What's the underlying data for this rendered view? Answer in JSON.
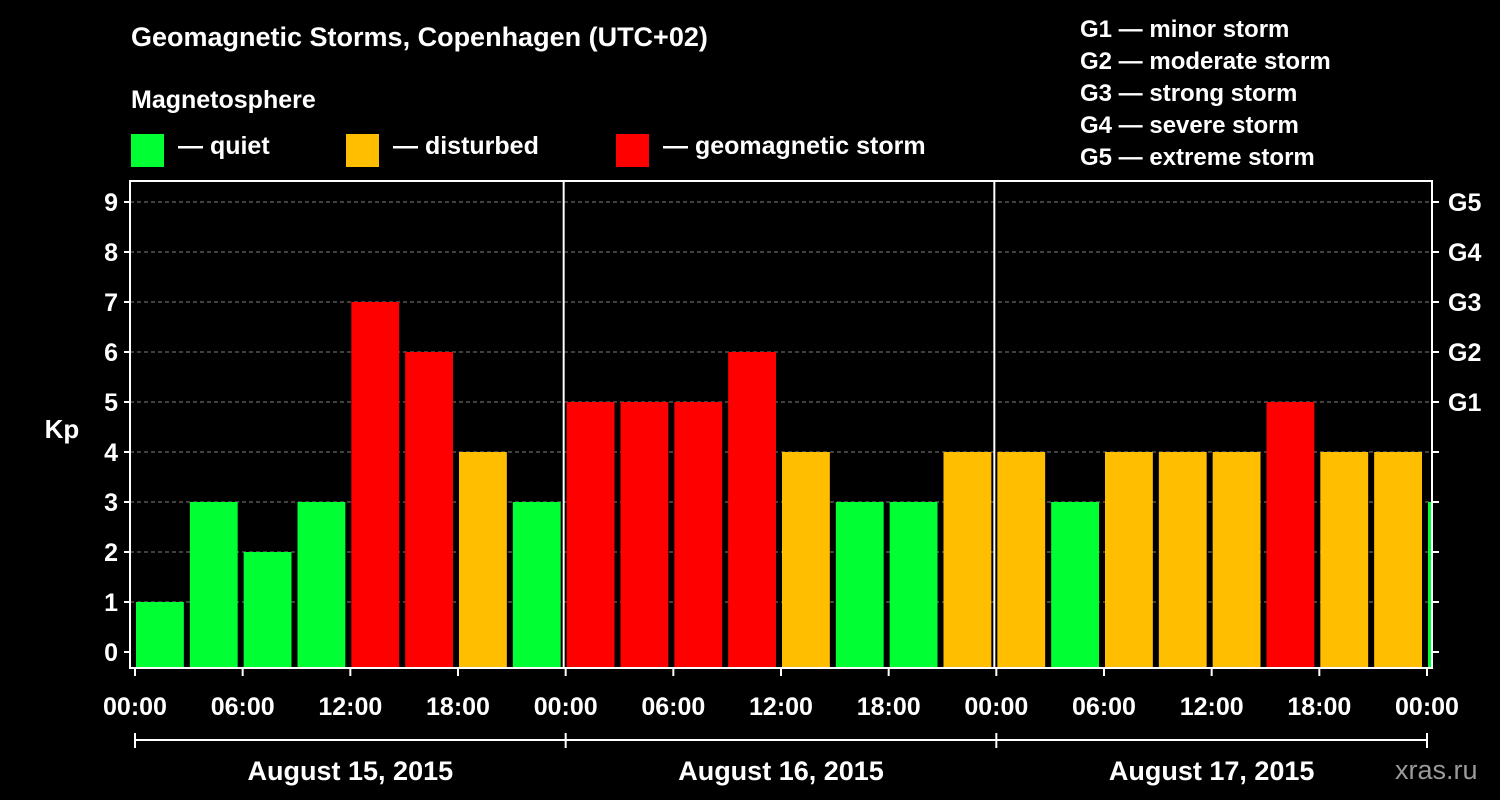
{
  "chart_data": {
    "type": "bar",
    "title": "Geomagnetic Storms, Copenhagen (UTC+02)",
    "ylabel": "Kp",
    "ylim": [
      0,
      9
    ],
    "yticks": [
      "0",
      "1",
      "2",
      "3",
      "4",
      "5",
      "6",
      "7",
      "8",
      "9"
    ],
    "right_ticks": [
      {
        "kp": 5,
        "label": "G1"
      },
      {
        "kp": 6,
        "label": "G2"
      },
      {
        "kp": 7,
        "label": "G3"
      },
      {
        "kp": 8,
        "label": "G4"
      },
      {
        "kp": 9,
        "label": "G5"
      }
    ],
    "xtick_labels": [
      "00:00",
      "06:00",
      "12:00",
      "18:00",
      "00:00",
      "06:00",
      "12:00",
      "18:00",
      "00:00",
      "06:00",
      "12:00",
      "18:00",
      "00:00"
    ],
    "day_labels": [
      "August 15, 2015",
      "August 16, 2015",
      "August 17, 2015"
    ],
    "interval_hours": 3,
    "values": [
      1,
      3,
      2,
      3,
      7,
      6,
      4,
      3,
      5,
      5,
      5,
      6,
      4,
      3,
      3,
      4,
      4,
      3,
      4,
      4,
      4,
      5,
      4,
      4,
      3
    ],
    "colors": {
      "quiet": "#00ff33",
      "disturbed": "#ffbf00",
      "storm": "#ff0000"
    },
    "grid": "dashed horizontal",
    "legend": {
      "title": "Magnetosphere",
      "items": [
        {
          "key": "quiet",
          "label": "— quiet"
        },
        {
          "key": "disturbed",
          "label": "— disturbed"
        },
        {
          "key": "storm",
          "label": "— geomagnetic storm"
        }
      ]
    },
    "storm_scale": [
      "G1 — minor storm",
      "G2 — moderate storm",
      "G3 — strong storm",
      "G4 — severe storm",
      "G5 — extreme storm"
    ]
  },
  "watermark": "xras.ru"
}
